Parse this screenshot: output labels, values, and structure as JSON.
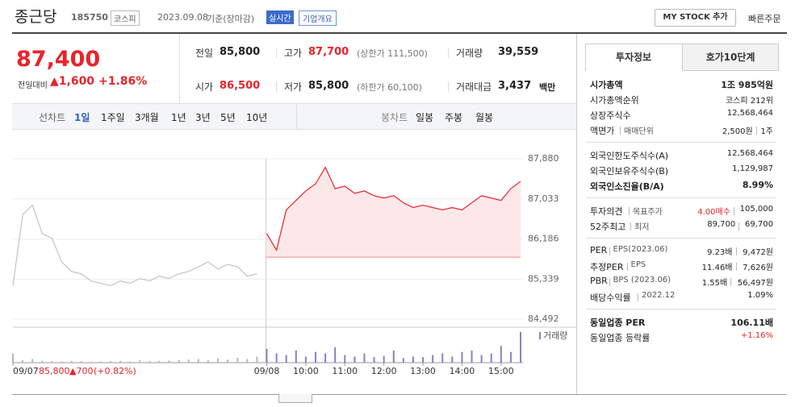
{
  "header": {
    "name": "종근당",
    "code": "185750",
    "market": "코스피",
    "date": "2023.09.08",
    "basis": "기준(장마감)",
    "realtime": "실시간",
    "company": "기업개요",
    "mystock": "MY STOCK 추가",
    "quick": "빠른주문"
  },
  "price": {
    "current": "87,400",
    "change_label": "전일대비",
    "change": "▲1,600",
    "rate": "+1.86%"
  },
  "summary": [
    {
      "label": "전일",
      "value": "85,800"
    },
    {
      "label": "고가",
      "value": "87,700",
      "extra": "(상한가 111,500)",
      "red": true
    },
    {
      "label": "거래량",
      "value": "39,559"
    },
    {
      "label": "시가",
      "value": "86,500",
      "red": true
    },
    {
      "label": "저가",
      "value": "85,800",
      "extra": "(하한가 60,100)"
    },
    {
      "label": "거래대금",
      "value": "3,437",
      "extra": "백만"
    }
  ],
  "tabs": {
    "line_label": "선차트",
    "periods": [
      "1일",
      "1주일",
      "3개월",
      "1년",
      "3년",
      "5년",
      "10년"
    ],
    "active": 0,
    "candle_label": "봉차트",
    "candles": [
      "일봉",
      "주봉",
      "월봉"
    ]
  },
  "side": {
    "tabs": [
      "투자정보",
      "호가10단계"
    ],
    "groups": [
      [
        {
          "label": [
            "시가총액"
          ],
          "value": [
            "1조 985억원"
          ],
          "bold": true
        },
        {
          "label": [
            "시가총액순위"
          ],
          "value": [
            "코스피 212위"
          ]
        },
        {
          "label": [
            "상장주식수"
          ],
          "value": [
            "12,568,464"
          ]
        },
        {
          "label": [
            "액면가",
            "매매단위"
          ],
          "value": [
            "2,500원",
            "1주"
          ]
        }
      ],
      [
        {
          "label": [
            "외국인한도주식수(A)"
          ],
          "value": [
            "12,568,464"
          ]
        },
        {
          "label": [
            "외국인보유주식수(B)"
          ],
          "value": [
            "1,129,987"
          ]
        },
        {
          "label": [
            "외국인소진율(B/A)"
          ],
          "value": [
            "8.99%"
          ],
          "bold": true
        }
      ],
      [
        {
          "label": [
            "투자의견",
            "목표주가"
          ],
          "value": [
            "4.00매수",
            "105,000"
          ],
          "red": 0
        },
        {
          "label": [
            "52주최고",
            "최저"
          ],
          "value": [
            "89,700",
            "69,700"
          ]
        }
      ],
      [
        {
          "label": [
            "PER",
            "EPS(2023.06)"
          ],
          "value": [
            "9.23배",
            "9,472원"
          ]
        },
        {
          "label": [
            "추정PER",
            "EPS"
          ],
          "value": [
            "11.46배",
            "7,626원"
          ]
        },
        {
          "label": [
            "PBR",
            "BPS (2023.06)"
          ],
          "value": [
            "1.55배",
            "56,497원"
          ]
        },
        {
          "label": [
            "배당수익률",
            "2022.12"
          ],
          "value": [
            "1.09%"
          ]
        }
      ],
      [
        {
          "label": [
            "동일업종 PER"
          ],
          "value": [
            "106.11배"
          ],
          "bold": true
        },
        {
          "label": [
            "동일업종 등락률"
          ],
          "value": [
            "+1.16%"
          ],
          "red": 0
        }
      ]
    ]
  },
  "chart_data": [
    {
      "type": "line",
      "categories": [
        "09/07",
        null,
        null,
        null,
        null,
        null,
        null,
        null,
        null,
        null,
        null,
        null,
        null,
        null,
        null,
        null,
        null,
        null,
        null,
        null,
        null,
        null,
        null,
        null,
        null,
        null,
        "09/08",
        null,
        null,
        null,
        "10:00",
        null,
        null,
        null,
        "11:00",
        null,
        null,
        null,
        "12:00",
        null,
        null,
        null,
        "13:00",
        null,
        null,
        null,
        "14:00",
        null,
        null,
        null,
        "15:00",
        null,
        null
      ],
      "series": [
        {
          "color": "#c4c4c4",
          "values": [
            85200,
            86700,
            86900,
            86300,
            86200,
            85700,
            85500,
            85450,
            85300,
            85250,
            85200,
            85300,
            85250,
            85350,
            85300,
            85400,
            85350,
            85450,
            85500,
            85600,
            85700,
            85550,
            85650,
            85600,
            85400,
            85450,
            null,
            null,
            null,
            null,
            null,
            null,
            null,
            null,
            null,
            null,
            null,
            null,
            null,
            null,
            null,
            null,
            null,
            null,
            null,
            null,
            null,
            null,
            null,
            null,
            null,
            null,
            null
          ]
        },
        {
          "color": "#e8242c",
          "fill": "#fde4e5",
          "values": [
            null,
            null,
            null,
            null,
            null,
            null,
            null,
            null,
            null,
            null,
            null,
            null,
            null,
            null,
            null,
            null,
            null,
            null,
            null,
            null,
            null,
            null,
            null,
            null,
            null,
            null,
            86300,
            85950,
            86800,
            87000,
            87200,
            87350,
            87700,
            87250,
            87300,
            87150,
            87200,
            87100,
            87050,
            87100,
            86950,
            86850,
            86900,
            86850,
            86800,
            86850,
            86800,
            86950,
            87100,
            87050,
            87000,
            87250,
            87400
          ]
        }
      ],
      "reference_line": {
        "value": 85800,
        "color": "#e8242c"
      },
      "ylim": [
        84492,
        87880
      ],
      "yticks": [
        {
          "value": 84492,
          "label": "84,492"
        },
        {
          "value": 85339,
          "label": "85,339"
        },
        {
          "value": 86186,
          "label": "86,186"
        },
        {
          "value": 87033,
          "label": "87,033"
        },
        {
          "value": 87880,
          "label": "87,880"
        }
      ],
      "grid": true,
      "annotation": [
        "85,800",
        "▲700",
        "(+0.82%)"
      ]
    },
    {
      "type": "bar",
      "legend": "거래량",
      "ylim": [
        0,
        100
      ],
      "series": [
        {
          "color": "#b8b8b8",
          "values": [
            30,
            8,
            12,
            6,
            5,
            4,
            6,
            5,
            3,
            4,
            5,
            6,
            4,
            8,
            5,
            6,
            7,
            9,
            10,
            12,
            8,
            14,
            10,
            16,
            12,
            20,
            null,
            null,
            null,
            null,
            null,
            null,
            null,
            null,
            null,
            null,
            null,
            null,
            null,
            null,
            null,
            null,
            null,
            null,
            null,
            null,
            null,
            null,
            null,
            null,
            null,
            null,
            null
          ]
        },
        {
          "color": "#8a7fc9",
          "values": [
            null,
            null,
            null,
            null,
            null,
            null,
            null,
            null,
            null,
            null,
            null,
            null,
            null,
            null,
            null,
            null,
            null,
            null,
            null,
            null,
            null,
            null,
            null,
            null,
            null,
            null,
            45,
            30,
            25,
            40,
            20,
            35,
            30,
            50,
            25,
            20,
            30,
            18,
            22,
            40,
            15,
            20,
            18,
            25,
            30,
            20,
            35,
            40,
            25,
            30,
            55,
            35,
            100
          ]
        }
      ]
    }
  ]
}
